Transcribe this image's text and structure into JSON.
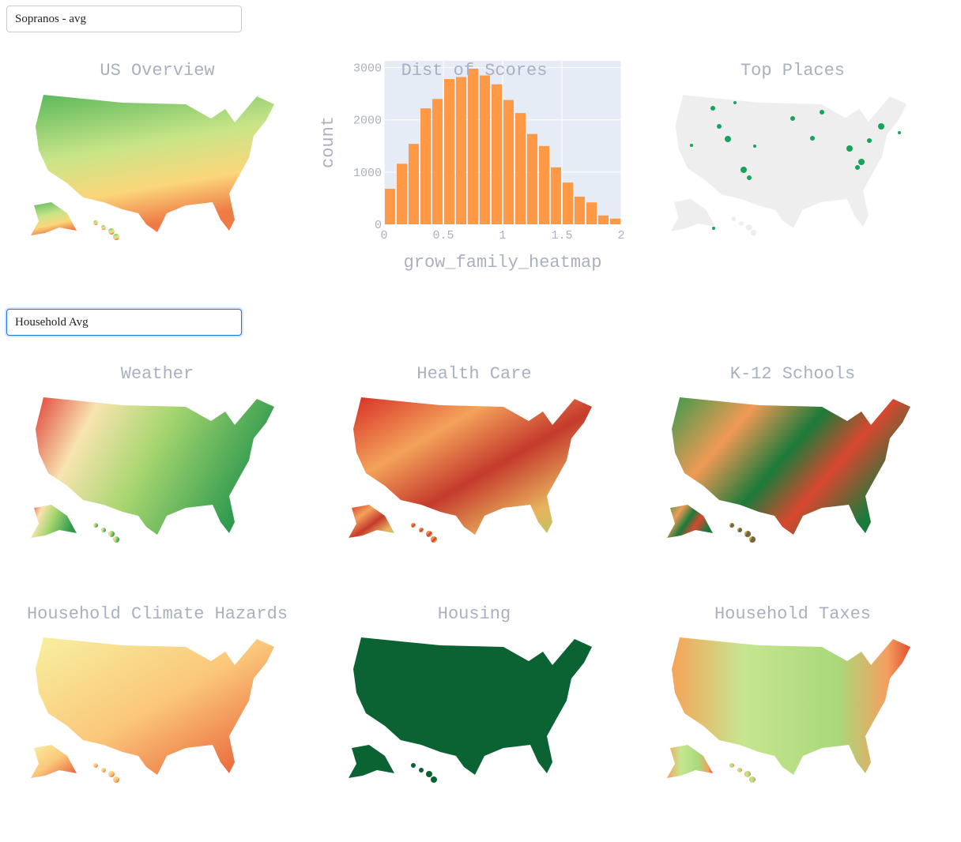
{
  "dropdowns": [
    "Sopranos - avg",
    "Household Avg"
  ],
  "map_titles": [
    "US Overview",
    "Top Places",
    "Weather",
    "Health Care",
    "K-12 Schools",
    "Household Climate Hazards",
    "Housing",
    "Household Taxes"
  ],
  "chart_data": {
    "type": "histogram",
    "title": "Dist of Scores",
    "x_label": "grow_family_heatmap",
    "y_label": "count",
    "bins": [
      0,
      0.1,
      0.2,
      0.3,
      0.4,
      0.5,
      0.6,
      0.7,
      0.8,
      0.9,
      1,
      1.1,
      1.2,
      1.3,
      1.4,
      1.5,
      1.6,
      1.7,
      1.8,
      1.9,
      2
    ],
    "counts": [
      680,
      1160,
      1540,
      2220,
      2400,
      2780,
      2820,
      2980,
      2850,
      2680,
      2380,
      2130,
      1730,
      1500,
      1090,
      800,
      530,
      420,
      170,
      110
    ],
    "color": "#ff9945",
    "xlim": [
      0,
      2
    ],
    "xticks": [
      0,
      0.5,
      1,
      1.5,
      2
    ],
    "ylim": [
      0,
      3130
    ],
    "yticks": [
      0,
      1000,
      2000,
      3000
    ],
    "grid": true
  }
}
